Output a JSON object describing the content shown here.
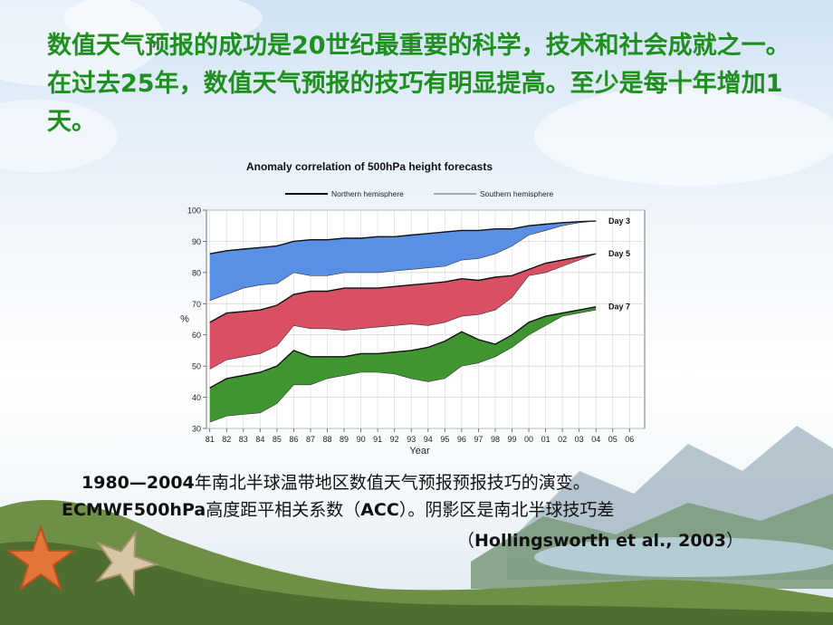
{
  "slide": {
    "headline": "数值天气预报的成功是20世纪最重要的科学，技术和社会成就之一。在过去25年，数值天气预报的技巧有明显提高。至少是每十年增加1天。",
    "caption_line1_a": "1980—2004",
    "caption_line1_b": "年南北半球温带地区数值天气预报预报技巧的演变。",
    "caption_line2_a": "ECMWF500hPa",
    "caption_line2_b": "高度距平相关系数（",
    "caption_line2_c": "ACC",
    "caption_line2_d": "）。阴影区是南北半球技巧差",
    "caption_line3_a": "（",
    "caption_line3_b": "Hollingsworth et al., 2003",
    "caption_line3_c": "）"
  },
  "chart_data": {
    "type": "area",
    "title": "Anomaly correlation of 500hPa height forecasts",
    "xlabel": "Year",
    "ylabel": "%",
    "ylim": [
      30,
      100
    ],
    "xlim": [
      1980.8,
      2006.9
    ],
    "x_ticks": [
      "81",
      "82",
      "83",
      "84",
      "85",
      "86",
      "87",
      "88",
      "89",
      "90",
      "91",
      "92",
      "93",
      "94",
      "95",
      "96",
      "97",
      "98",
      "99",
      "00",
      "01",
      "02",
      "03",
      "04",
      "05",
      "06"
    ],
    "y_ticks": [
      30,
      40,
      50,
      60,
      70,
      80,
      90,
      100
    ],
    "grid": true,
    "legend": [
      {
        "label": "Northern hemisphere",
        "style": "thick"
      },
      {
        "label": "Southern hemisphere",
        "style": "thin"
      }
    ],
    "legend_position": "top",
    "x": [
      1981,
      1982,
      1983,
      1984,
      1985,
      1986,
      1987,
      1988,
      1989,
      1990,
      1991,
      1992,
      1993,
      1994,
      1995,
      1996,
      1997,
      1998,
      1999,
      2000,
      2001,
      2002,
      2003,
      2004
    ],
    "series": [
      {
        "name": "Day 3",
        "color": "#5a8fe6",
        "northern": [
          86,
          87,
          87.5,
          88,
          88.5,
          90,
          90.5,
          90.5,
          91,
          91,
          91.5,
          91.5,
          92,
          92.5,
          93,
          93.5,
          93.5,
          94,
          94,
          95,
          95.5,
          96,
          96.3,
          96.5
        ],
        "southern": [
          71,
          73,
          75,
          76,
          76.5,
          80,
          79,
          79,
          80,
          80,
          80,
          80.5,
          81,
          81.5,
          82,
          84,
          84.5,
          86,
          88.5,
          92,
          93.5,
          95,
          96,
          96.5
        ]
      },
      {
        "name": "Day 5",
        "color": "#d94f63",
        "northern": [
          64,
          67,
          67.5,
          68,
          69.5,
          73,
          74,
          74,
          75,
          75,
          75,
          75.5,
          76,
          76.5,
          77,
          78,
          77.5,
          78.5,
          79,
          81,
          83,
          84,
          85,
          86
        ],
        "southern": [
          49,
          52,
          53,
          54,
          56.5,
          63,
          62,
          62,
          61.5,
          62,
          62.5,
          63,
          63.5,
          63,
          64,
          66,
          66.5,
          68,
          72,
          79,
          80,
          82,
          84,
          86
        ]
      },
      {
        "name": "Day 7",
        "color": "#3f9630",
        "northern": [
          43,
          46,
          47,
          48,
          50,
          55,
          53,
          53,
          53,
          54,
          54,
          54.5,
          55,
          56,
          58,
          61,
          58.5,
          57,
          60,
          64,
          66,
          67,
          68,
          69
        ],
        "southern": [
          32,
          34,
          34.5,
          35,
          38,
          44,
          44,
          46,
          47,
          48,
          48,
          47.5,
          46,
          45,
          46,
          50,
          51,
          53,
          56,
          60,
          63,
          66,
          67,
          68
        ]
      }
    ]
  }
}
